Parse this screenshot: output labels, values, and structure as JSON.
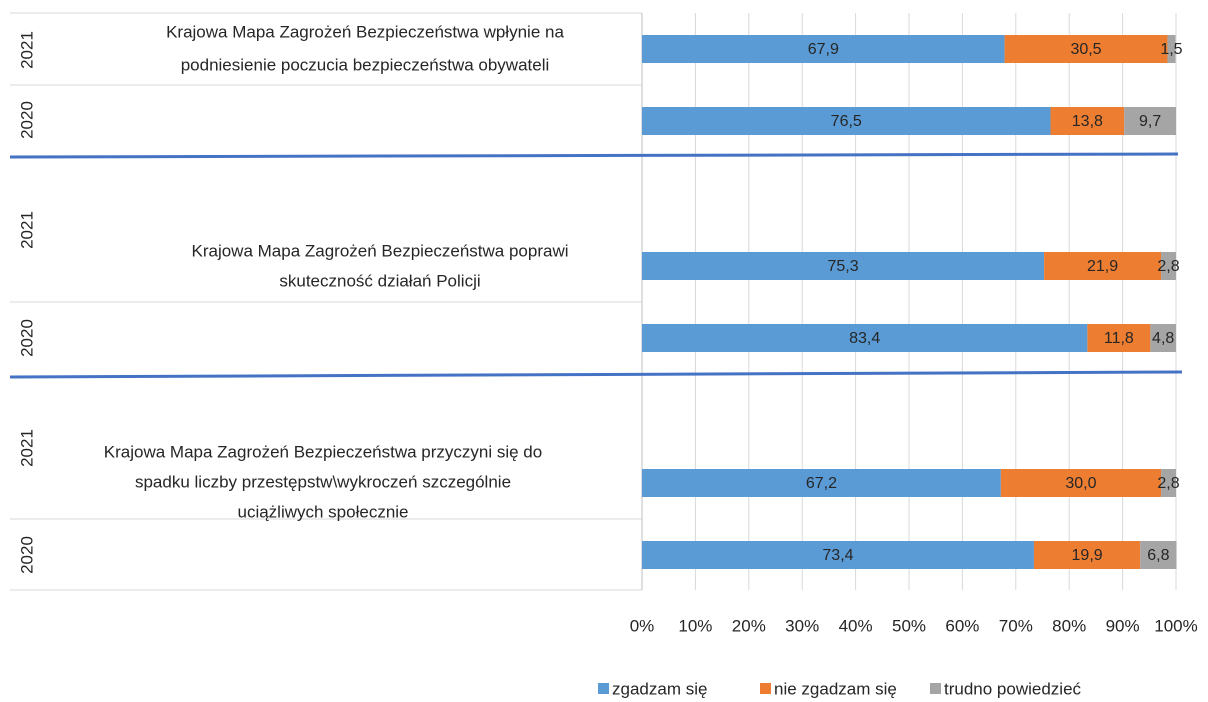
{
  "chart_data": {
    "type": "bar",
    "orientation": "horizontal",
    "stacked": true,
    "categories": [
      "2021",
      "2020",
      "2021",
      "2020",
      "2021",
      "2020"
    ],
    "groups": [
      {
        "label_lines": [
          "Krajowa Mapa Zagrożeń Bezpieczeństwa wpłynie na",
          "podniesienie poczucia bezpieczeństwa obywateli"
        ]
      },
      {
        "label_lines": [
          "Krajowa Mapa Zagrożeń Bezpieczeństwa poprawi",
          "skuteczność działań Policji"
        ]
      },
      {
        "label_lines": [
          "Krajowa Mapa Zagrożeń Bezpieczeństwa przyczyni się do",
          "spadku liczby przestępstw\\wykroczeń szczególnie",
          "uciążliwych społecznie"
        ]
      }
    ],
    "series": [
      {
        "name": "zgadzam się",
        "color": "#5b9bd5",
        "values": [
          67.9,
          76.5,
          75.3,
          83.4,
          67.2,
          73.4
        ],
        "value_labels": [
          "67,9",
          "76,5",
          "75,3",
          "83,4",
          "67,2",
          "73,4"
        ]
      },
      {
        "name": "nie zgadzam się",
        "color": "#ed7d31",
        "values": [
          30.5,
          13.8,
          21.9,
          11.8,
          30.0,
          19.9
        ],
        "value_labels": [
          "30,5",
          "13,8",
          "21,9",
          "11,8",
          "30,0",
          "19,9"
        ]
      },
      {
        "name": "trudno powiedzieć",
        "color": "#a5a5a5",
        "values": [
          1.5,
          9.7,
          2.8,
          4.8,
          2.8,
          6.8
        ],
        "value_labels": [
          "1,5",
          "9,7",
          "2,8",
          "4,8",
          "2,8",
          "6,8"
        ]
      }
    ],
    "xlim": [
      0,
      100
    ],
    "xticks": [
      {
        "value": 0,
        "label": "0%"
      },
      {
        "value": 10,
        "label": "10%"
      },
      {
        "value": 20,
        "label": "20%"
      },
      {
        "value": 30,
        "label": "30%"
      },
      {
        "value": 40,
        "label": "40%"
      },
      {
        "value": 50,
        "label": "50%"
      },
      {
        "value": 60,
        "label": "60%"
      },
      {
        "value": 70,
        "label": "70%"
      },
      {
        "value": 80,
        "label": "80%"
      },
      {
        "value": 90,
        "label": "90%"
      },
      {
        "value": 100,
        "label": "100%"
      }
    ],
    "grid": true,
    "legend": "bottom"
  }
}
